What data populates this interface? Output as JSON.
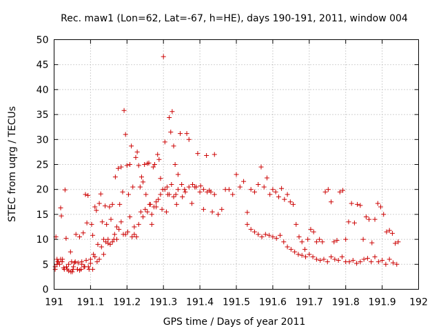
{
  "chart_data": {
    "type": "scatter",
    "title": "Rec. maw1 (Lon=62, Lat=-67, h=HE), days 190-191, 2011, window 004",
    "xlabel": "GPS time / Days of year 2011",
    "ylabel": "STEC from uqrg / TECUs",
    "xlim": [
      191,
      192
    ],
    "ylim": [
      0,
      50
    ],
    "xticks": [
      "191",
      "191.1",
      "191.2",
      "191.3",
      "191.4",
      "191.5",
      "191.6",
      "191.7",
      "191.8",
      "191.9",
      "192"
    ],
    "yticks": [
      "0",
      "5",
      "10",
      "15",
      "20",
      "25",
      "30",
      "35",
      "40",
      "45",
      "50"
    ],
    "grid": true,
    "marker": "plus",
    "color": "#cc0000",
    "series": [
      {
        "x": [
          191.003,
          191.005,
          191.008,
          191.01,
          191.015,
          191.018,
          191.02,
          191.023,
          191.026,
          191.03,
          191.033,
          191.036,
          191.04,
          191.045,
          191.048,
          191.05,
          191.053,
          191.056,
          191.06,
          191.064,
          191.066,
          191.07,
          191.074,
          191.076,
          191.08,
          191.084,
          191.086,
          191.09,
          191.093,
          191.096,
          191.1,
          191.103,
          191.106,
          191.108,
          191.112,
          191.116,
          191.12,
          191.124,
          191.128,
          191.132,
          191.136,
          191.14,
          191.144,
          191.148,
          191.152,
          191.156,
          191.16,
          191.164,
          191.168,
          191.172,
          191.176,
          191.18,
          191.184,
          191.188,
          191.192,
          191.196,
          191.2,
          191.204,
          191.208,
          191.212,
          191.216,
          191.22,
          191.224,
          191.228,
          191.232,
          191.236,
          191.24,
          191.244,
          191.248,
          191.252,
          191.256,
          191.26,
          191.264,
          191.268,
          191.272,
          191.276,
          191.28,
          191.284,
          191.288,
          191.292,
          191.296,
          191.3,
          191.304,
          191.308,
          191.312,
          191.316,
          191.32,
          191.324,
          191.328,
          191.332,
          191.336,
          191.34,
          191.346,
          191.352,
          191.358,
          191.364,
          191.37,
          191.378,
          191.386,
          191.394,
          191.402,
          191.41,
          191.418,
          191.426,
          191.434,
          191.44,
          191.45,
          191.46,
          191.47,
          191.48,
          191.49,
          191.5,
          191.51,
          191.52,
          191.53,
          191.54,
          191.55,
          191.56,
          191.568,
          191.576,
          191.584,
          191.592,
          191.6,
          191.608,
          191.616,
          191.624,
          191.632,
          191.64,
          191.648,
          191.656,
          191.664,
          191.672,
          191.68,
          191.688,
          191.696,
          191.704,
          191.712,
          191.72,
          191.728,
          191.736,
          191.744,
          191.752,
          191.76,
          191.768,
          191.776,
          191.784,
          191.792,
          191.8,
          191.808,
          191.816,
          191.824,
          191.832,
          191.84,
          191.848,
          191.856,
          191.864,
          191.872,
          191.88,
          191.888,
          191.896,
          191.904,
          191.912,
          191.92,
          191.928,
          191.936,
          191.944
        ],
        "y": [
          4.5,
          10.5,
          6.0,
          5.5,
          5.0,
          16.3,
          14.7,
          6.0,
          4.3,
          19.9,
          10.2,
          4.0,
          3.7,
          7.5,
          5.5,
          3.5,
          4.5,
          5.3,
          11.0,
          4.0,
          5.3,
          10.5,
          4.0,
          5.5,
          11.3,
          4.5,
          19.0,
          13.3,
          18.8,
          4.0,
          6.0,
          13.0,
          10.8,
          7.0,
          16.5,
          15.8,
          9.0,
          17.2,
          19.1,
          13.5,
          10.0,
          16.7,
          13.0,
          9.2,
          16.5,
          14.0,
          17.0,
          10.0,
          22.5,
          12.5,
          24.2,
          17.0,
          24.5,
          19.5,
          35.8,
          31.0,
          24.8,
          19.0,
          25.0,
          28.7,
          20.5,
          11.0,
          26.4,
          27.5,
          24.8,
          20.5,
          22.5,
          21.5,
          25.0,
          19.0,
          25.2,
          25.3,
          17.0,
          15.0,
          24.5,
          25.0,
          16.5,
          27.0,
          26.0,
          22.2,
          16.0,
          46.6,
          29.5,
          15.5,
          19.0,
          34.4,
          31.5,
          35.6,
          28.7,
          25.0,
          17.0,
          23.0,
          31.2,
          18.5,
          20.0,
          31.2,
          30.0,
          17.2,
          20.5,
          27.2,
          20.7,
          16.0,
          26.8,
          19.8,
          15.5,
          27.0,
          15.0,
          16.0,
          20.0,
          20.0,
          19.0,
          23.0,
          20.5,
          21.6,
          15.4,
          20.0,
          19.5,
          21.0,
          24.5,
          20.5,
          22.3,
          19.0,
          20.0,
          19.5,
          18.5,
          20.2,
          18.0,
          19.0,
          17.5,
          17.0,
          13.0,
          10.5,
          9.5,
          8.0,
          10.0,
          12.0,
          11.5,
          9.5,
          10.0,
          9.5,
          19.5,
          20.0,
          17.5,
          9.5,
          9.8,
          19.5,
          19.8,
          10.0,
          13.5,
          17.2,
          13.3,
          17.0,
          16.8,
          10.0,
          14.5,
          14.0,
          9.3,
          14.0,
          17.2,
          16.5,
          15.0,
          11.5,
          11.8,
          11.2,
          9.2,
          9.5
        ]
      },
      {
        "x": [
          191.003,
          191.008,
          191.012,
          191.018,
          191.022,
          191.028,
          191.034,
          191.04,
          191.046,
          191.052,
          191.058,
          191.064,
          191.07,
          191.076,
          191.082,
          191.088,
          191.094,
          191.1,
          191.106,
          191.112,
          191.118,
          191.124,
          191.13,
          191.136,
          191.142,
          191.148,
          191.154,
          191.16,
          191.166,
          191.172,
          191.178,
          191.184,
          191.19,
          191.196,
          191.202,
          191.208,
          191.214,
          191.22,
          191.226,
          191.232,
          191.238,
          191.244,
          191.25,
          191.256,
          191.262,
          191.268,
          191.274,
          191.28,
          191.286,
          191.292,
          191.298,
          191.304,
          191.31,
          191.316,
          191.322,
          191.328,
          191.334,
          191.34,
          191.35,
          191.36,
          191.37,
          191.38,
          191.39,
          191.4,
          191.41,
          191.42,
          191.43,
          191.44,
          191.53,
          191.54,
          191.55,
          191.56,
          191.57,
          191.58,
          191.59,
          191.6,
          191.61,
          191.62,
          191.63,
          191.64,
          191.65,
          191.66,
          191.67,
          191.68,
          191.69,
          191.7,
          191.71,
          191.72,
          191.73,
          191.74,
          191.75,
          191.76,
          191.77,
          191.78,
          191.79,
          191.8,
          191.81,
          191.82,
          191.83,
          191.84,
          191.85,
          191.86,
          191.87,
          191.88,
          191.89,
          191.9,
          191.91,
          191.92,
          191.93,
          191.94
        ],
        "y": [
          4.0,
          5.0,
          5.5,
          6.0,
          5.5,
          4.0,
          4.5,
          5.0,
          3.5,
          4.0,
          5.5,
          4.0,
          3.8,
          5.0,
          4.5,
          5.8,
          4.5,
          5.2,
          4.0,
          6.5,
          5.5,
          6.0,
          8.5,
          7.0,
          9.5,
          10.0,
          9.0,
          9.5,
          11.0,
          10.0,
          12.0,
          13.5,
          11.0,
          11.0,
          11.5,
          14.5,
          10.5,
          12.5,
          10.5,
          13.0,
          15.5,
          14.5,
          16.0,
          15.5,
          17.0,
          13.0,
          16.5,
          17.5,
          18.0,
          19.0,
          20.0,
          20.0,
          20.5,
          19.0,
          21.0,
          18.5,
          19.0,
          20.0,
          21.0,
          19.5,
          20.5,
          21.0,
          20.5,
          19.5,
          20.0,
          19.5,
          19.5,
          19.0,
          13.0,
          12.0,
          11.5,
          11.0,
          10.5,
          11.0,
          10.8,
          10.5,
          10.2,
          10.8,
          9.5,
          8.5,
          8.0,
          7.5,
          7.0,
          6.8,
          6.5,
          7.0,
          6.5,
          6.0,
          5.8,
          6.0,
          5.5,
          6.5,
          6.0,
          5.8,
          6.5,
          5.5,
          5.5,
          5.8,
          5.2,
          5.5,
          6.0,
          6.2,
          5.5,
          6.5,
          5.5,
          5.8,
          5.0,
          6.0,
          5.3,
          5.0
        ]
      }
    ]
  }
}
